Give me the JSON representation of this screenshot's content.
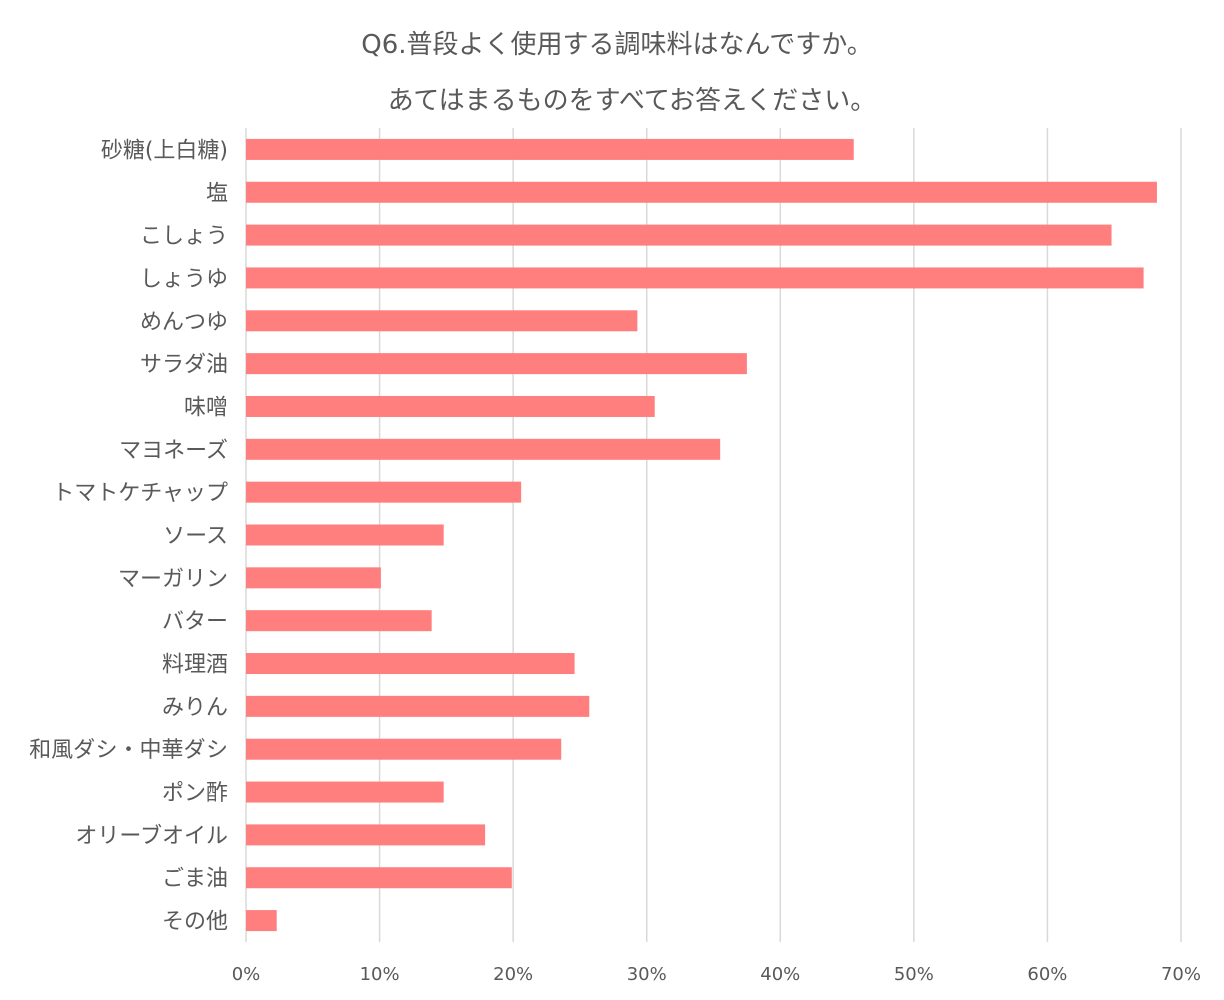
{
  "chart_data": {
    "type": "bar",
    "orientation": "horizontal",
    "title_lines": [
      "Q6.普段よく使用する調味料はなんですか。",
      "あてはまるものをすべてお答えください。"
    ],
    "categories": [
      "砂糖(上白糖)",
      "塩",
      "こしょう",
      "しょうゆ",
      "めんつゆ",
      "サラダ油",
      "味噌",
      "マヨネーズ",
      "トマトケチャップ",
      "ソース",
      "マーガリン",
      "バター",
      "料理酒",
      "みりん",
      "和風ダシ・中華ダシ",
      "ポン酢",
      "オリーブオイル",
      "ごま油",
      "その他"
    ],
    "values": [
      45.5,
      68.2,
      64.8,
      67.2,
      29.3,
      37.5,
      30.6,
      35.5,
      20.6,
      14.8,
      10.1,
      13.9,
      24.6,
      25.7,
      23.6,
      14.8,
      17.9,
      19.9,
      2.3
    ],
    "xlim": [
      0,
      70
    ],
    "xticks": [
      0,
      10,
      20,
      30,
      40,
      50,
      60,
      70
    ],
    "xtick_labels": [
      "0%",
      "10%",
      "20%",
      "30%",
      "40%",
      "50%",
      "60%",
      "70%"
    ],
    "unit": "%",
    "grid": "vertical",
    "legend": "none",
    "colors": {
      "bar": "#ff7f7f",
      "grid": "#d9d9d9",
      "text": "#595959"
    }
  }
}
